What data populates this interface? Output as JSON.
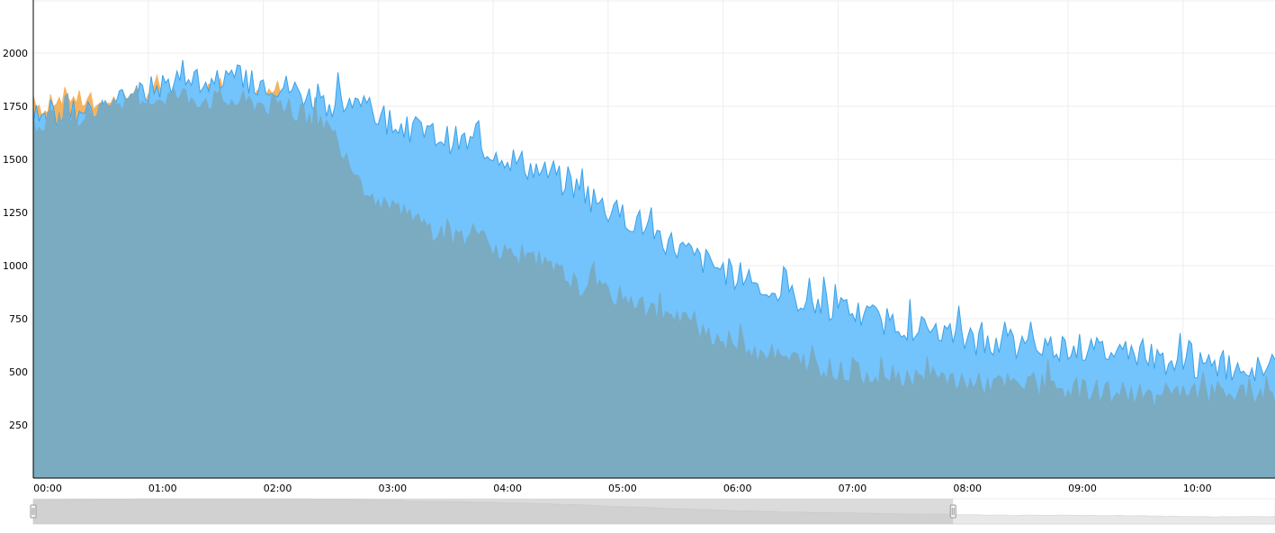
{
  "chart_data": {
    "type": "area",
    "title": "",
    "xlabel": "",
    "ylabel": "",
    "x_ticks": [
      "00:00",
      "01:00",
      "02:00",
      "03:00",
      "04:00",
      "05:00",
      "06:00",
      "07:00",
      "08:00",
      "09:00",
      "10:00"
    ],
    "y_ticks": [
      250,
      500,
      750,
      1000,
      1250,
      1500,
      1750,
      2000
    ],
    "ylim": [
      0,
      2250
    ],
    "x_range_hours": [
      0,
      10.8
    ],
    "grid": true,
    "legend": "none",
    "series": [
      {
        "color": "#f5b35f",
        "fill": "#f5b35f",
        "x_hours": [
          0,
          0.1,
          0.2,
          0.3,
          0.4,
          0.5,
          0.6,
          0.7,
          0.8,
          0.9,
          1.0,
          1.1,
          1.2,
          1.3,
          1.4,
          1.5,
          1.6,
          1.7,
          1.8,
          1.9,
          2.0,
          2.1,
          2.2
        ],
        "values": [
          1800,
          1720,
          1790,
          1800,
          1780,
          1760,
          1750,
          1780,
          1800,
          1790,
          1820,
          1830,
          1800,
          1810,
          1790,
          1820,
          1850,
          1800,
          1830,
          1780,
          1800,
          1810,
          1790
        ]
      },
      {
        "color": "#3aa2e8",
        "fill": "#73c3fc",
        "x_hours": [
          0,
          0.25,
          0.5,
          0.75,
          1.0,
          1.25,
          1.5,
          1.75,
          2.0,
          2.25,
          2.5,
          2.75,
          3.0,
          3.25,
          3.5,
          3.75,
          4.0,
          4.25,
          4.5,
          4.75,
          5.0,
          5.25,
          5.5,
          5.75,
          6.0,
          6.25,
          6.5,
          6.75,
          7.0,
          7.25,
          7.5,
          7.75,
          8.0,
          8.25,
          8.5,
          8.75,
          9.0,
          9.25,
          9.5,
          9.75,
          10.0,
          10.25,
          10.5,
          10.8
        ],
        "values": [
          1680,
          1710,
          1740,
          1760,
          1820,
          1880,
          1860,
          1850,
          1870,
          1830,
          1770,
          1760,
          1700,
          1650,
          1610,
          1580,
          1540,
          1480,
          1420,
          1360,
          1260,
          1210,
          1120,
          1040,
          980,
          920,
          860,
          830,
          800,
          760,
          730,
          700,
          670,
          640,
          610,
          620,
          620,
          600,
          590,
          570,
          530,
          520,
          530,
          520
        ]
      },
      {
        "color": "#7aabc1",
        "fill": "#7aabc1",
        "x_hours": [
          0,
          0.25,
          0.5,
          0.75,
          1.0,
          1.25,
          1.5,
          1.75,
          2.0,
          2.25,
          2.5,
          2.7,
          2.85,
          3.0,
          3.25,
          3.5,
          3.75,
          4.0,
          4.25,
          4.5,
          4.75,
          5.0,
          5.25,
          5.5,
          5.75,
          6.0,
          6.25,
          6.5,
          6.75,
          7.0,
          7.25,
          7.5,
          7.75,
          8.0,
          8.25,
          8.5,
          8.75,
          9.0,
          9.25,
          9.5,
          9.75,
          10.0,
          10.25,
          10.5,
          10.8
        ],
        "values": [
          1660,
          1690,
          1720,
          1740,
          1780,
          1800,
          1780,
          1770,
          1760,
          1720,
          1690,
          1550,
          1400,
          1280,
          1230,
          1160,
          1130,
          1090,
          1030,
          980,
          900,
          870,
          820,
          760,
          720,
          650,
          600,
          570,
          540,
          500,
          490,
          490,
          470,
          460,
          440,
          440,
          420,
          420,
          410,
          400,
          380,
          390,
          400,
          390,
          380
        ]
      }
    ],
    "navigator": {
      "range_start_hours": 0,
      "range_end_hours": 8.0
    }
  }
}
